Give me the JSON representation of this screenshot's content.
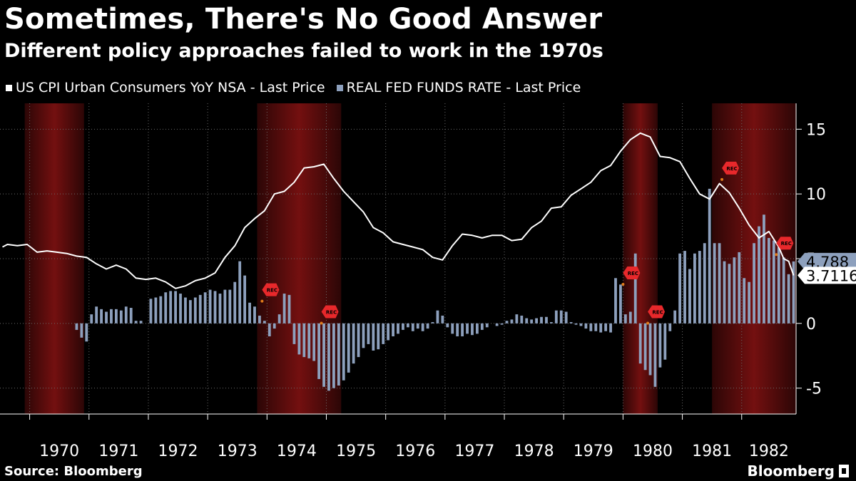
{
  "header": {
    "title": "Sometimes, There's No Good Answer",
    "subtitle": "Different policy approaches failed to work in the 1970s"
  },
  "footer": {
    "source": "Source: Bloomberg",
    "brand": "Bloomberg"
  },
  "chart_data": {
    "type": "line",
    "title": "Sometimes, There's No Good Answer",
    "subtitle": "Different policy approaches failed to work in the 1970s",
    "x_range": [
      "1969-07",
      "1982-11"
    ],
    "x_tick_labels": [
      "1970",
      "1971",
      "1972",
      "1973",
      "1974",
      "1975",
      "1976",
      "1977",
      "1978",
      "1979",
      "1980",
      "1981",
      "1982"
    ],
    "y_axis_side": "right",
    "y_ticks": [
      15,
      10,
      5,
      0,
      -5
    ],
    "ylim": [
      -7,
      17
    ],
    "grid": "dotted",
    "legend_position": "top-left",
    "colors": {
      "cpi": "#ffffff",
      "real_ffr": "#8da0bd",
      "recession": "#9a1515",
      "rec_marker": "#e8282b",
      "marker_dot": "#e07b1a"
    },
    "recessions": [
      {
        "start": "1969-12",
        "end": "1970-11"
      },
      {
        "start": "1973-11",
        "end": "1975-03"
      },
      {
        "start": "1980-01",
        "end": "1980-07"
      },
      {
        "start": "1981-07",
        "end": "1982-11"
      }
    ],
    "rec_markers": [
      {
        "label": "REC",
        "date": "1973-12",
        "value": 2.6
      },
      {
        "label": "REC",
        "date": "1974-12",
        "value": 0.9
      },
      {
        "label": "REC",
        "date": "1980-01",
        "value": 3.9
      },
      {
        "label": "REC",
        "date": "1980-06",
        "value": 0.9
      },
      {
        "label": "REC",
        "date": "1981-09",
        "value": 12.0
      },
      {
        "label": "REC",
        "date": "1982-08",
        "value": 6.2
      }
    ],
    "series": [
      {
        "name": "US CPI Urban Consumers YoY NSA - Last Price",
        "type": "line",
        "last_value_label": "3.7116",
        "points": [
          [
            "1969-07",
            5.9
          ],
          [
            "1969-08",
            6.1
          ],
          [
            "1969-10",
            6.0
          ],
          [
            "1969-12",
            6.1
          ],
          [
            "1970-02",
            5.5
          ],
          [
            "1970-04",
            5.6
          ],
          [
            "1970-06",
            5.5
          ],
          [
            "1970-08",
            5.4
          ],
          [
            "1970-10",
            5.2
          ],
          [
            "1970-12",
            5.1
          ],
          [
            "1971-02",
            4.6
          ],
          [
            "1971-04",
            4.2
          ],
          [
            "1971-06",
            4.5
          ],
          [
            "1971-08",
            4.2
          ],
          [
            "1971-10",
            3.5
          ],
          [
            "1971-12",
            3.4
          ],
          [
            "1972-02",
            3.5
          ],
          [
            "1972-04",
            3.2
          ],
          [
            "1972-06",
            2.7
          ],
          [
            "1972-08",
            2.9
          ],
          [
            "1972-10",
            3.3
          ],
          [
            "1972-12",
            3.5
          ],
          [
            "1973-02",
            3.9
          ],
          [
            "1973-04",
            5.1
          ],
          [
            "1973-06",
            6.0
          ],
          [
            "1973-08",
            7.4
          ],
          [
            "1973-10",
            8.1
          ],
          [
            "1973-12",
            8.7
          ],
          [
            "1974-02",
            10.0
          ],
          [
            "1974-04",
            10.2
          ],
          [
            "1974-06",
            10.9
          ],
          [
            "1974-08",
            12.0
          ],
          [
            "1974-10",
            12.1
          ],
          [
            "1974-12",
            12.3
          ],
          [
            "1975-02",
            11.2
          ],
          [
            "1975-04",
            10.2
          ],
          [
            "1975-06",
            9.4
          ],
          [
            "1975-08",
            8.6
          ],
          [
            "1975-10",
            7.4
          ],
          [
            "1975-12",
            7.0
          ],
          [
            "1976-02",
            6.3
          ],
          [
            "1976-04",
            6.1
          ],
          [
            "1976-06",
            5.9
          ],
          [
            "1976-08",
            5.7
          ],
          [
            "1976-10",
            5.1
          ],
          [
            "1976-12",
            4.9
          ],
          [
            "1977-02",
            6.0
          ],
          [
            "1977-04",
            6.9
          ],
          [
            "1977-06",
            6.8
          ],
          [
            "1977-08",
            6.6
          ],
          [
            "1977-10",
            6.8
          ],
          [
            "1977-12",
            6.8
          ],
          [
            "1978-02",
            6.4
          ],
          [
            "1978-04",
            6.5
          ],
          [
            "1978-06",
            7.4
          ],
          [
            "1978-08",
            7.9
          ],
          [
            "1978-10",
            8.9
          ],
          [
            "1978-12",
            9.0
          ],
          [
            "1979-02",
            9.9
          ],
          [
            "1979-04",
            10.4
          ],
          [
            "1979-06",
            10.9
          ],
          [
            "1979-08",
            11.8
          ],
          [
            "1979-10",
            12.2
          ],
          [
            "1979-12",
            13.3
          ],
          [
            "1980-02",
            14.2
          ],
          [
            "1980-04",
            14.7
          ],
          [
            "1980-06",
            14.4
          ],
          [
            "1980-08",
            12.9
          ],
          [
            "1980-10",
            12.8
          ],
          [
            "1980-12",
            12.5
          ],
          [
            "1981-02",
            11.2
          ],
          [
            "1981-04",
            10.0
          ],
          [
            "1981-06",
            9.6
          ],
          [
            "1981-08",
            10.8
          ],
          [
            "1981-10",
            10.1
          ],
          [
            "1981-12",
            8.9
          ],
          [
            "1982-02",
            7.6
          ],
          [
            "1982-04",
            6.6
          ],
          [
            "1982-06",
            7.1
          ],
          [
            "1982-08",
            5.9
          ],
          [
            "1982-09",
            5.0
          ],
          [
            "1982-10",
            4.8
          ],
          [
            "1982-11",
            3.7116
          ]
        ]
      },
      {
        "name": "REAL FED FUNDS RATE - Last Price",
        "type": "bar",
        "last_value_label": "4.788",
        "points": [
          [
            "1970-10",
            -0.5
          ],
          [
            "1970-11",
            -1.1
          ],
          [
            "1970-12",
            -1.4
          ],
          [
            "1971-01",
            0.7
          ],
          [
            "1971-02",
            1.3
          ],
          [
            "1971-03",
            1.1
          ],
          [
            "1971-04",
            0.9
          ],
          [
            "1971-05",
            1.1
          ],
          [
            "1971-06",
            1.1
          ],
          [
            "1971-07",
            1.0
          ],
          [
            "1971-08",
            1.3
          ],
          [
            "1971-09",
            1.2
          ],
          [
            "1971-10",
            0.2
          ],
          [
            "1971-11",
            0.2
          ],
          [
            "1972-01",
            1.9
          ],
          [
            "1972-02",
            2.0
          ],
          [
            "1972-03",
            2.1
          ],
          [
            "1972-04",
            2.4
          ],
          [
            "1972-05",
            2.5
          ],
          [
            "1972-06",
            2.5
          ],
          [
            "1972-07",
            2.3
          ],
          [
            "1972-08",
            2.0
          ],
          [
            "1972-09",
            1.8
          ],
          [
            "1972-10",
            2.0
          ],
          [
            "1972-11",
            2.2
          ],
          [
            "1972-12",
            2.4
          ],
          [
            "1973-01",
            2.6
          ],
          [
            "1973-02",
            2.5
          ],
          [
            "1973-03",
            2.3
          ],
          [
            "1973-04",
            2.6
          ],
          [
            "1973-05",
            2.6
          ],
          [
            "1973-06",
            3.2
          ],
          [
            "1973-07",
            4.8
          ],
          [
            "1973-08",
            3.7
          ],
          [
            "1973-09",
            1.6
          ],
          [
            "1973-10",
            1.3
          ],
          [
            "1973-11",
            0.6
          ],
          [
            "1973-12",
            0.2
          ],
          [
            "1974-01",
            -1.0
          ],
          [
            "1974-02",
            -0.4
          ],
          [
            "1974-03",
            0.7
          ],
          [
            "1974-04",
            2.3
          ],
          [
            "1974-05",
            2.2
          ],
          [
            "1974-06",
            -1.6
          ],
          [
            "1974-07",
            -2.4
          ],
          [
            "1974-08",
            -2.6
          ],
          [
            "1974-09",
            -2.7
          ],
          [
            "1974-10",
            -2.9
          ],
          [
            "1974-11",
            -4.3
          ],
          [
            "1974-12",
            -4.9
          ],
          [
            "1975-01",
            -5.2
          ],
          [
            "1975-02",
            -5.0
          ],
          [
            "1975-03",
            -4.8
          ],
          [
            "1975-04",
            -4.4
          ],
          [
            "1975-05",
            -3.8
          ],
          [
            "1975-06",
            -3.1
          ],
          [
            "1975-07",
            -2.6
          ],
          [
            "1975-08",
            -1.9
          ],
          [
            "1975-09",
            -1.6
          ],
          [
            "1975-10",
            -2.1
          ],
          [
            "1975-11",
            -2.0
          ],
          [
            "1975-12",
            -1.6
          ],
          [
            "1976-01",
            -1.3
          ],
          [
            "1976-02",
            -1.0
          ],
          [
            "1976-03",
            -0.8
          ],
          [
            "1976-04",
            -0.5
          ],
          [
            "1976-05",
            -0.3
          ],
          [
            "1976-06",
            -0.6
          ],
          [
            "1976-07",
            -0.4
          ],
          [
            "1976-08",
            -0.6
          ],
          [
            "1976-09",
            -0.4
          ],
          [
            "1976-10",
            0.1
          ],
          [
            "1976-11",
            1.0
          ],
          [
            "1976-12",
            0.6
          ],
          [
            "1977-01",
            -0.3
          ],
          [
            "1977-02",
            -0.8
          ],
          [
            "1977-03",
            -1.0
          ],
          [
            "1977-04",
            -1.0
          ],
          [
            "1977-05",
            -0.8
          ],
          [
            "1977-06",
            -0.9
          ],
          [
            "1977-07",
            -0.8
          ],
          [
            "1977-08",
            -0.5
          ],
          [
            "1977-09",
            -0.3
          ],
          [
            "1977-10",
            0.0
          ],
          [
            "1977-11",
            -0.2
          ],
          [
            "1977-12",
            -0.1
          ],
          [
            "1978-01",
            0.2
          ],
          [
            "1978-02",
            0.3
          ],
          [
            "1978-03",
            0.7
          ],
          [
            "1978-04",
            0.6
          ],
          [
            "1978-05",
            0.4
          ],
          [
            "1978-06",
            0.3
          ],
          [
            "1978-07",
            0.4
          ],
          [
            "1978-08",
            0.5
          ],
          [
            "1978-09",
            0.5
          ],
          [
            "1978-10",
            0.1
          ],
          [
            "1978-11",
            1.0
          ],
          [
            "1978-12",
            1.0
          ],
          [
            "1979-01",
            0.9
          ],
          [
            "1979-02",
            0.1
          ],
          [
            "1979-03",
            -0.1
          ],
          [
            "1979-04",
            -0.2
          ],
          [
            "1979-05",
            -0.4
          ],
          [
            "1979-06",
            -0.6
          ],
          [
            "1979-07",
            -0.6
          ],
          [
            "1979-08",
            -0.7
          ],
          [
            "1979-09",
            -0.6
          ],
          [
            "1979-10",
            -0.7
          ],
          [
            "1979-11",
            3.5
          ],
          [
            "1979-12",
            3.0
          ],
          [
            "1980-01",
            0.7
          ],
          [
            "1980-02",
            0.9
          ],
          [
            "1980-03",
            5.4
          ],
          [
            "1980-04",
            -3.1
          ],
          [
            "1980-05",
            -3.6
          ],
          [
            "1980-06",
            -4.0
          ],
          [
            "1980-07",
            -4.9
          ],
          [
            "1980-08",
            -3.4
          ],
          [
            "1980-09",
            -2.8
          ],
          [
            "1980-10",
            -0.6
          ],
          [
            "1980-11",
            1.0
          ],
          [
            "1980-12",
            5.4
          ],
          [
            "1981-01",
            5.6
          ],
          [
            "1981-02",
            4.2
          ],
          [
            "1981-03",
            5.4
          ],
          [
            "1981-04",
            5.6
          ],
          [
            "1981-05",
            6.2
          ],
          [
            "1981-06",
            10.4
          ],
          [
            "1981-07",
            6.2
          ],
          [
            "1981-08",
            6.2
          ],
          [
            "1981-09",
            4.8
          ],
          [
            "1981-10",
            4.6
          ],
          [
            "1981-11",
            5.1
          ],
          [
            "1981-12",
            5.5
          ],
          [
            "1982-01",
            3.5
          ],
          [
            "1982-02",
            3.2
          ],
          [
            "1982-03",
            6.2
          ],
          [
            "1982-04",
            7.5
          ],
          [
            "1982-05",
            8.4
          ],
          [
            "1982-06",
            6.6
          ],
          [
            "1982-07",
            6.4
          ],
          [
            "1982-08",
            5.9
          ],
          [
            "1982-09",
            5.1
          ],
          [
            "1982-10",
            3.8
          ],
          [
            "1982-11",
            4.788
          ]
        ]
      }
    ]
  }
}
